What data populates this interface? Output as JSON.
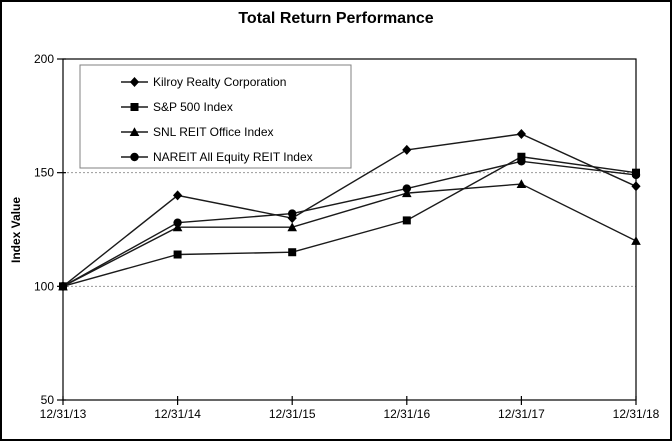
{
  "chart_data": {
    "type": "line",
    "title": "Total Return Performance",
    "ylabel": "Index Value",
    "xlabel": "",
    "x": [
      "12/31/13",
      "12/31/14",
      "12/31/15",
      "12/31/16",
      "12/31/17",
      "12/31/18"
    ],
    "series": [
      {
        "name": "Kilroy Realty Corporation",
        "marker": "diamond",
        "values": [
          100,
          140,
          130,
          160,
          167,
          144
        ]
      },
      {
        "name": "S&P 500 Index",
        "marker": "square",
        "values": [
          100,
          114,
          115,
          129,
          157,
          150
        ]
      },
      {
        "name": "SNL REIT Office Index",
        "marker": "triangle",
        "values": [
          100,
          126,
          126,
          141,
          145,
          120
        ]
      },
      {
        "name": "NAREIT All Equity REIT Index",
        "marker": "circle",
        "values": [
          100,
          128,
          132,
          143,
          155,
          149
        ]
      }
    ],
    "ylim": [
      50,
      200
    ],
    "yticks": [
      50,
      100,
      150,
      200
    ],
    "gridlines_at": [
      100,
      150
    ],
    "grid_style": "dashed horizontal",
    "legend_position": "top-left",
    "colors": {
      "line": "#1a1a1a",
      "marker": "#000000",
      "grid": "#999999",
      "axis": "#000000",
      "legend_border": "#808080",
      "background": "#ffffff",
      "figure_border": "#000000"
    }
  }
}
